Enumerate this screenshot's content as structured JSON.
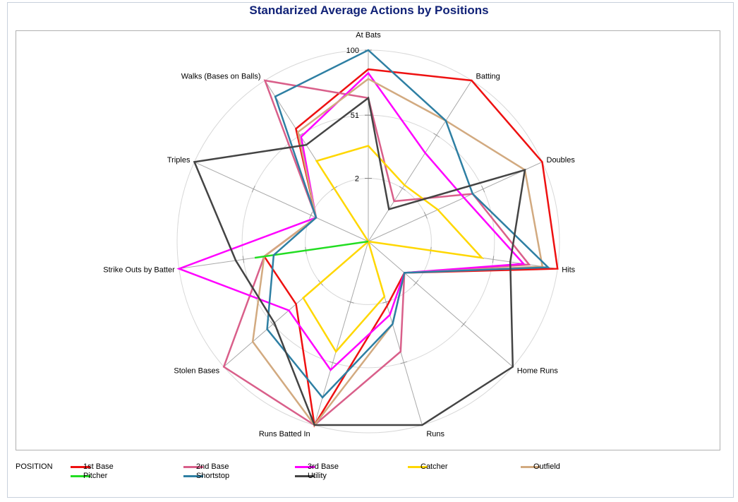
{
  "title": "Standarized Average Actions by Positions",
  "legend": {
    "title": "POSITION",
    "items": [
      {
        "label": "1st Base",
        "color": "#ee1111"
      },
      {
        "label": "2nd Base",
        "color": "#d95f8a"
      },
      {
        "label": "3rd Base",
        "color": "#ff00ff"
      },
      {
        "label": "Catcher",
        "color": "#ffd700"
      },
      {
        "label": "Outfield",
        "color": "#d2aa80"
      },
      {
        "label": "Pitcher",
        "color": "#22dd22"
      },
      {
        "label": "Shortstop",
        "color": "#2e7fa3"
      },
      {
        "label": "Utility",
        "color": "#444444"
      }
    ]
  },
  "chart_data": {
    "type": "radar",
    "title": "Standarized Average Actions by Positions",
    "axes": [
      "At Bats",
      "Batting",
      "Doubles",
      "Hits",
      "Home Runs",
      "Runs",
      "Runs Batted In",
      "Stolen Bases",
      "Strike Outs by Batter",
      "Triples",
      "Walks (Bases on Balls)"
    ],
    "radial_ticks": [
      2,
      51,
      100
    ],
    "radial_range": [
      0,
      100
    ],
    "grid": true,
    "legend_position": "bottom",
    "series": [
      {
        "name": "1st Base",
        "color": "#ee1111",
        "values": [
          90,
          100,
          100,
          100,
          25,
          35,
          100,
          50,
          55,
          30,
          70
        ]
      },
      {
        "name": "2nd Base",
        "color": "#d95f8a",
        "values": [
          75,
          25,
          60,
          85,
          25,
          60,
          100,
          100,
          55,
          30,
          100
        ]
      },
      {
        "name": "3rd Base",
        "color": "#ff00ff",
        "values": [
          88,
          55,
          55,
          82,
          25,
          40,
          70,
          55,
          100,
          30,
          65
        ]
      },
      {
        "name": "Catcher",
        "color": "#ffd700",
        "values": [
          50,
          35,
          40,
          60,
          0,
          30,
          60,
          45,
          0,
          0,
          50
        ]
      },
      {
        "name": "Outfield",
        "color": "#d2aa80",
        "values": [
          85,
          75,
          90,
          92,
          25,
          45,
          100,
          80,
          55,
          30,
          68
        ]
      },
      {
        "name": "Pitcher",
        "color": "#22dd22",
        "values": [
          0,
          0,
          0,
          0,
          0,
          0,
          0,
          0,
          60,
          0,
          0
        ]
      },
      {
        "name": "Shortstop",
        "color": "#2e7fa3",
        "values": [
          100,
          75,
          60,
          95,
          25,
          45,
          85,
          70,
          50,
          30,
          90
        ]
      },
      {
        "name": "Utility",
        "color": "#444444",
        "values": [
          75,
          20,
          90,
          75,
          100,
          100,
          100,
          65,
          70,
          100,
          60
        ]
      }
    ]
  }
}
